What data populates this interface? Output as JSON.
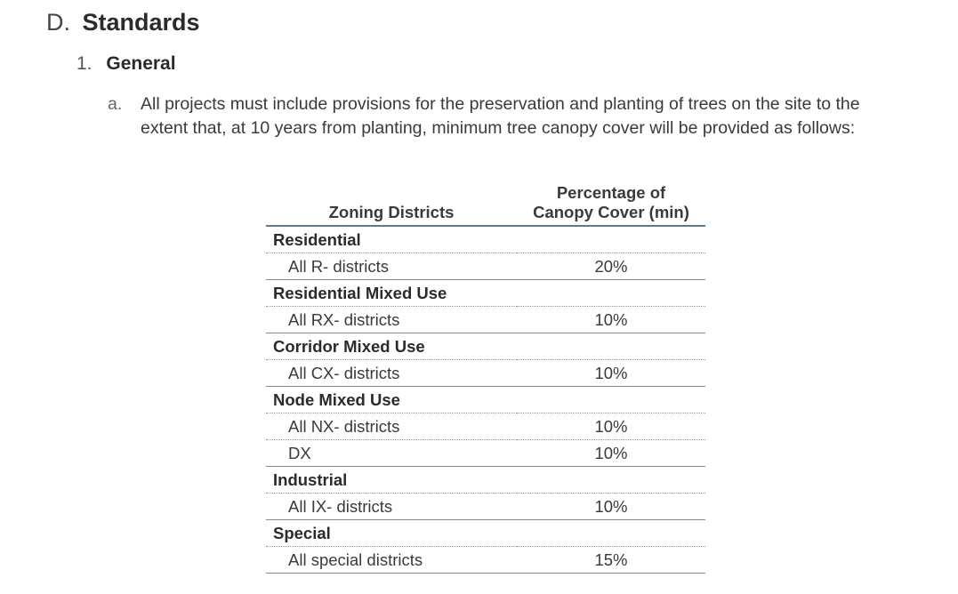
{
  "section": {
    "marker": "D.",
    "title": "Standards"
  },
  "subsection": {
    "marker": "1.",
    "title": "General"
  },
  "paragraph": {
    "marker": "a.",
    "text": "All projects must include provisions for the preservation and planting of trees on the site to the extent that, at 10 years from planting, minimum tree canopy cover will be provided as follows:"
  },
  "table": {
    "headers": {
      "zoning": "Zoning Districts",
      "percentage_line1": "Percentage of",
      "percentage_line2": "Canopy Cover (min)"
    },
    "groups": [
      {
        "name": "Residential",
        "rows": [
          {
            "district": "All R- districts",
            "percentage": "20%"
          }
        ]
      },
      {
        "name": "Residential Mixed Use",
        "rows": [
          {
            "district": "All RX- districts",
            "percentage": "10%"
          }
        ]
      },
      {
        "name": "Corridor Mixed Use",
        "rows": [
          {
            "district": "All CX- districts",
            "percentage": "10%"
          }
        ]
      },
      {
        "name": "Node Mixed Use",
        "rows": [
          {
            "district": "All NX- districts",
            "percentage": "10%"
          },
          {
            "district": "DX",
            "percentage": "10%"
          }
        ]
      },
      {
        "name": "Industrial",
        "rows": [
          {
            "district": "All IX- districts",
            "percentage": "10%"
          }
        ]
      },
      {
        "name": "Special",
        "rows": [
          {
            "district": "All special districts",
            "percentage": "15%"
          }
        ]
      }
    ]
  }
}
